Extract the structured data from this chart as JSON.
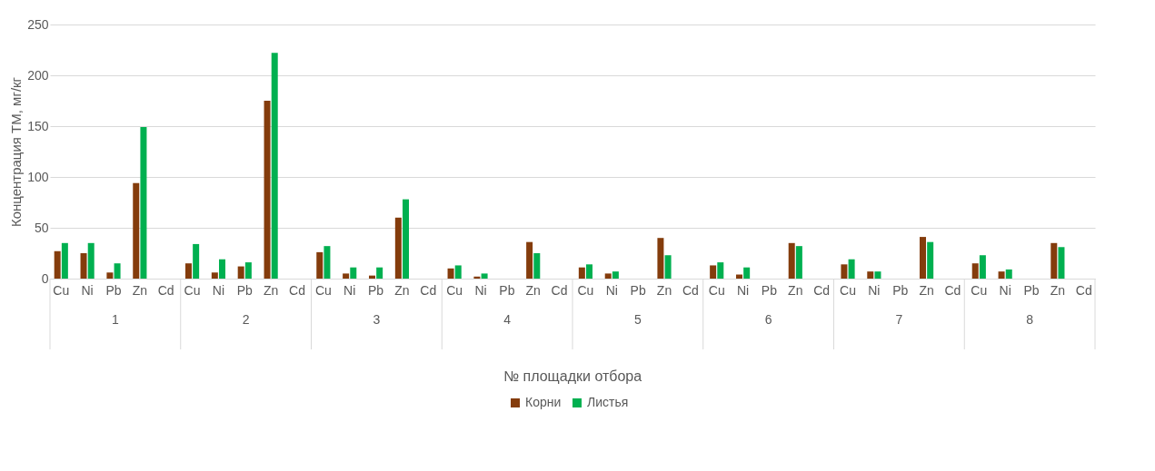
{
  "chart_data": {
    "type": "bar",
    "xlabel": "№ площадки отбора",
    "ylabel": "Концентрация ТМ, мг/кг",
    "categories": [
      "Cu",
      "Ni",
      "Pb",
      "Zn",
      "Cd",
      "Cu",
      "Ni",
      "Pb",
      "Zn",
      "Cd",
      "Cu",
      "Ni",
      "Pb",
      "Zn",
      "Cd",
      "Cu",
      "Ni",
      "Pb",
      "Zn",
      "Cd",
      "Cu",
      "Ni",
      "Pb",
      "Zn",
      "Cd",
      "Cu",
      "Ni",
      "Pb",
      "Zn",
      "Cd",
      "Cu",
      "Ni",
      "Pb",
      "Zn",
      "Cd",
      "Cu",
      "Ni",
      "Pb",
      "Zn",
      "Cd"
    ],
    "series": [
      {
        "name": "Корни",
        "color": "#843c0c",
        "values": [
          27,
          25,
          6,
          94,
          null,
          15,
          6,
          12,
          175,
          null,
          26,
          5,
          3,
          60,
          null,
          10,
          2,
          null,
          36,
          null,
          11,
          5,
          null,
          40,
          null,
          13,
          4,
          null,
          35,
          null,
          14,
          7,
          null,
          41,
          null,
          15,
          7,
          null,
          35,
          null
        ]
      },
      {
        "name": "Листья",
        "color": "#00b050",
        "values": [
          35,
          35,
          15,
          149,
          null,
          34,
          19,
          16,
          222,
          null,
          32,
          11,
          11,
          78,
          null,
          13,
          5,
          null,
          25,
          null,
          14,
          7,
          null,
          23,
          null,
          16,
          11,
          null,
          32,
          null,
          19,
          7,
          null,
          36,
          null,
          23,
          9,
          null,
          31,
          null
        ]
      }
    ],
    "annotations": [
      "1",
      "2",
      "3",
      "4",
      "5",
      "6",
      "7",
      "8"
    ],
    "ylim": [
      0,
      250
    ],
    "yticks": [
      0,
      50,
      100,
      150,
      200,
      250
    ],
    "grid": "y",
    "legend": "bottom"
  }
}
